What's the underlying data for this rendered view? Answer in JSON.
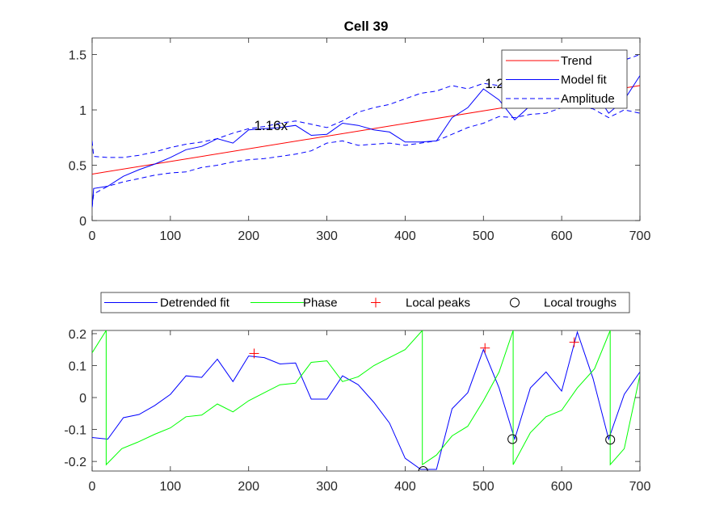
{
  "chart_data": [
    {
      "type": "line",
      "title": "Cell 39",
      "xlim": [
        0,
        700
      ],
      "ylim": [
        0,
        1.65
      ],
      "xticks": [
        "0",
        "100",
        "200",
        "300",
        "400",
        "500",
        "600",
        "700"
      ],
      "yticks": [
        "0",
        "0.5",
        "1",
        "1.5"
      ],
      "legend_position": "top-right",
      "series": [
        {
          "name": "Trend",
          "color": "#ff0000",
          "style": "solid",
          "x": [
            0,
            700
          ],
          "y": [
            0.42,
            1.22
          ]
        },
        {
          "name": "Model fit",
          "color": "#0000ff",
          "style": "solid",
          "x": [
            0,
            2,
            20,
            40,
            60,
            80,
            100,
            120,
            140,
            160,
            180,
            200,
            220,
            240,
            260,
            280,
            300,
            320,
            340,
            360,
            380,
            400,
            420,
            440,
            460,
            480,
            500,
            520,
            540,
            560,
            580,
            600,
            620,
            640,
            660,
            680,
            700
          ],
          "y": [
            0.12,
            0.29,
            0.31,
            0.4,
            0.46,
            0.51,
            0.57,
            0.64,
            0.67,
            0.74,
            0.7,
            0.82,
            0.83,
            0.84,
            0.86,
            0.77,
            0.78,
            0.88,
            0.86,
            0.82,
            0.8,
            0.71,
            0.71,
            0.72,
            0.93,
            1.02,
            1.19,
            1.09,
            0.91,
            1.04,
            1.1,
            1.02,
            1.14,
            1.19,
            0.97,
            1.09,
            1.31
          ]
        },
        {
          "name": "Amplitude",
          "color": "#0000ff",
          "style": "dashed",
          "x": [
            0,
            2,
            20,
            40,
            60,
            80,
            100,
            120,
            140,
            160,
            180,
            200,
            220,
            240,
            260,
            280,
            300,
            320,
            340,
            360,
            380,
            400,
            420,
            440,
            460,
            480,
            500,
            520,
            540,
            560,
            580,
            600,
            620,
            640,
            660,
            680,
            700
          ],
          "y": [
            0.72,
            0.58,
            0.57,
            0.57,
            0.59,
            0.62,
            0.66,
            0.69,
            0.71,
            0.74,
            0.79,
            0.83,
            0.85,
            0.88,
            0.9,
            0.87,
            0.84,
            0.9,
            0.98,
            1.02,
            1.05,
            1.1,
            1.15,
            1.17,
            1.22,
            1.19,
            1.24,
            1.22,
            1.21,
            1.26,
            1.28,
            1.31,
            1.35,
            1.37,
            1.4,
            1.45,
            1.5
          ],
          "y_lower": [
            0.12,
            0.24,
            0.31,
            0.35,
            0.38,
            0.41,
            0.43,
            0.44,
            0.48,
            0.5,
            0.53,
            0.55,
            0.56,
            0.58,
            0.6,
            0.63,
            0.7,
            0.72,
            0.68,
            0.69,
            0.7,
            0.68,
            0.7,
            0.72,
            0.78,
            0.84,
            0.88,
            0.94,
            0.93,
            0.96,
            0.97,
            1.02,
            1.03,
            1.01,
            0.93,
            1.0,
            0.97
          ]
        }
      ],
      "annotations": [
        {
          "text": "1.16x",
          "x": 207,
          "y": 0.86
        },
        {
          "text": "1.2",
          "x": 502,
          "y": 1.24
        }
      ]
    },
    {
      "type": "line",
      "xlim": [
        0,
        700
      ],
      "ylim": [
        -0.23,
        0.21
      ],
      "xticks": [
        "0",
        "100",
        "200",
        "300",
        "400",
        "500",
        "600",
        "700"
      ],
      "yticks": [
        "-0.2",
        "-0.1",
        "0",
        "0.1",
        "0.2"
      ],
      "legend_position": "top-outside",
      "series": [
        {
          "name": "Detrended fit",
          "color": "#0000ff",
          "style": "solid",
          "x": [
            0,
            20,
            40,
            60,
            80,
            100,
            120,
            140,
            160,
            180,
            200,
            220,
            240,
            260,
            280,
            300,
            320,
            340,
            360,
            380,
            400,
            420,
            440,
            460,
            480,
            500,
            520,
            540,
            560,
            580,
            600,
            620,
            640,
            660,
            680,
            700
          ],
          "y": [
            -0.125,
            -0.13,
            -0.063,
            -0.053,
            -0.025,
            0.01,
            0.068,
            0.063,
            0.12,
            0.05,
            0.13,
            0.125,
            0.105,
            0.108,
            -0.005,
            -0.005,
            0.068,
            0.04,
            -0.015,
            -0.08,
            -0.19,
            -0.225,
            -0.225,
            -0.035,
            0.015,
            0.15,
            0.03,
            -0.13,
            0.03,
            0.08,
            0.02,
            0.205,
            0.06,
            -0.13,
            0.01,
            0.08
          ]
        },
        {
          "name": "Phase",
          "color": "#00ff00",
          "style": "solid",
          "x": [
            0,
            18,
            18.01,
            38,
            58,
            80,
            100,
            120,
            140,
            160,
            180,
            200,
            220,
            240,
            260,
            280,
            300,
            320,
            340,
            360,
            380,
            400,
            422,
            422.01,
            440,
            460,
            480,
            500,
            520,
            538,
            538.01,
            560,
            580,
            600,
            620,
            642,
            662,
            662.01,
            680,
            700
          ],
          "y": [
            0.14,
            0.21,
            -0.21,
            -0.16,
            -0.14,
            -0.115,
            -0.095,
            -0.06,
            -0.055,
            -0.02,
            -0.045,
            -0.01,
            0.015,
            0.04,
            0.045,
            0.11,
            0.115,
            0.05,
            0.065,
            0.1,
            0.125,
            0.15,
            0.21,
            -0.21,
            -0.18,
            -0.12,
            -0.09,
            -0.01,
            0.08,
            0.21,
            -0.21,
            -0.11,
            -0.06,
            -0.04,
            0.03,
            0.09,
            0.21,
            -0.21,
            -0.16,
            0.07
          ]
        },
        {
          "name": "Local peaks",
          "color": "#ff0000",
          "marker": "+",
          "x": [
            207,
            502,
            616
          ],
          "y": [
            0.138,
            0.155,
            0.173
          ]
        },
        {
          "name": "Local troughs",
          "color": "#000000",
          "marker": "o",
          "x": [
            423,
            537,
            662
          ],
          "y": [
            -0.23,
            -0.13,
            -0.132
          ]
        }
      ]
    }
  ]
}
